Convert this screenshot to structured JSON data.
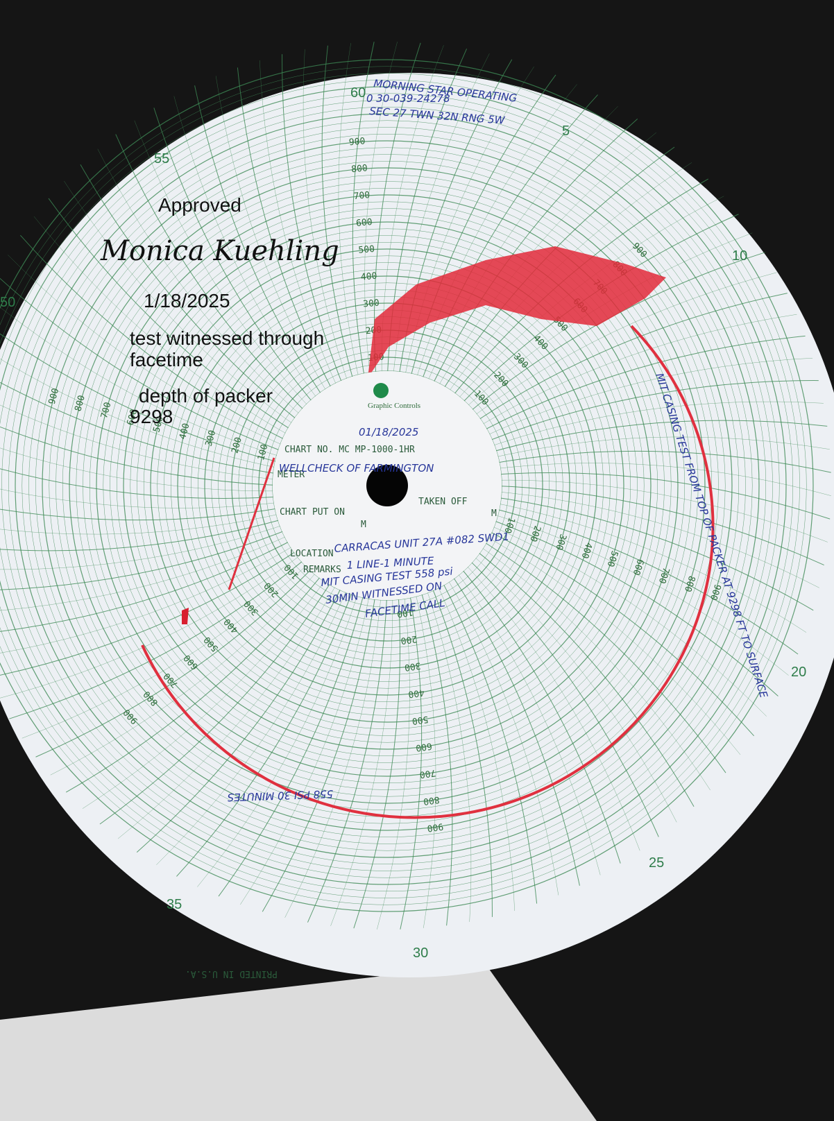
{
  "annotations": {
    "approved": "Approved",
    "signature": "Monica Kuehling",
    "date": "1/18/2025",
    "note_lines": [
      "test witnessed through",
      "facetime"
    ],
    "packer_lines": [
      "depth of packer",
      "9298"
    ]
  },
  "chart_disc": {
    "minute_labels": [
      "60",
      "5",
      "10",
      "20",
      "25",
      "30",
      "35",
      "55",
      "50"
    ],
    "scale_labels": [
      "100",
      "200",
      "300",
      "400",
      "500",
      "600",
      "700",
      "800",
      "900"
    ],
    "brand": "Graphic Controls",
    "chart_no": "CHART NO. MC MP-1000-1HR",
    "meter": "METER",
    "put_on": "CHART PUT ON",
    "taken_off": "TAKEN OFF",
    "m": "M",
    "location": "LOCATION",
    "remarks": "REMARKS",
    "printed": "PRINTED IN U.S.A."
  },
  "handwriting": {
    "operator": "MORNING STAR OPERATING",
    "api": "0 30-039-24278",
    "sec": "SEC 27 TWN 32N RNG 5W",
    "date": "01/18/2025",
    "meter": "WELLCHECK OF FARMINGTON",
    "location": "CARRACAS UNIT 27A #082 SWD1",
    "remarks": [
      "1 LINE-1 MINUTE",
      "MIT CASING TEST 558 psi",
      "30MIN WITNESSED ON",
      "FACETIME CALL"
    ],
    "side_note": "MIT CASING TEST FROM TOP OF PACKER AT 9298 FT TO SURFACE",
    "bottom_note": "558 PSI 30 MINUTES"
  }
}
